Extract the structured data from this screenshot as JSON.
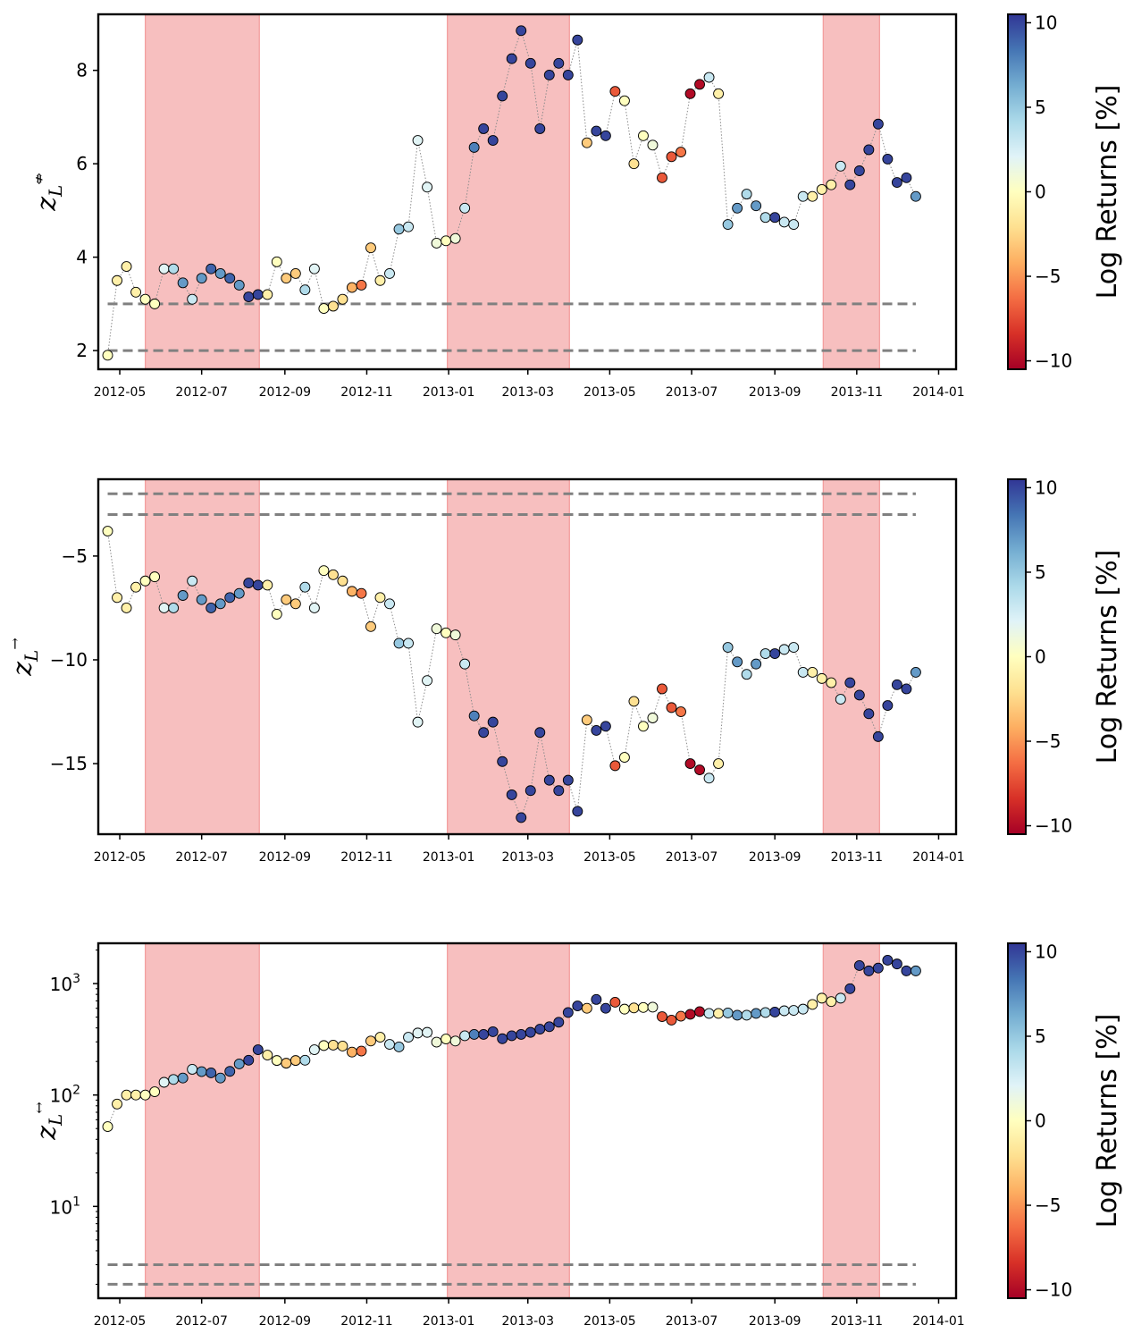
{
  "colorbar_label": "Log Returns [%]",
  "colorbar_ticks": [
    10,
    5,
    0,
    -5,
    -10
  ],
  "colorbar_tick_labels": [
    "10",
    "5",
    "0",
    "−5",
    "−10"
  ],
  "colormap": [
    "#a50026",
    "#d73027",
    "#f46d43",
    "#fdae61",
    "#fee090",
    "#ffffbf",
    "#e0f3f8",
    "#abd9e9",
    "#74add1",
    "#4575b4",
    "#313695"
  ],
  "shade_color": "#f08080",
  "dates": [
    "2012-04-22",
    "2012-04-29",
    "2012-05-06",
    "2012-05-13",
    "2012-05-20",
    "2012-05-27",
    "2012-06-03",
    "2012-06-10",
    "2012-06-17",
    "2012-06-24",
    "2012-07-01",
    "2012-07-08",
    "2012-07-15",
    "2012-07-22",
    "2012-07-29",
    "2012-08-05",
    "2012-08-12",
    "2012-08-19",
    "2012-08-26",
    "2012-09-02",
    "2012-09-09",
    "2012-09-16",
    "2012-09-23",
    "2012-09-30",
    "2012-10-07",
    "2012-10-14",
    "2012-10-21",
    "2012-10-28",
    "2012-11-04",
    "2012-11-11",
    "2012-11-18",
    "2012-11-25",
    "2012-12-02",
    "2012-12-09",
    "2012-12-16",
    "2012-12-23",
    "2012-12-30",
    "2013-01-06",
    "2013-01-13",
    "2013-01-20",
    "2013-01-27",
    "2013-02-03",
    "2013-02-10",
    "2013-02-17",
    "2013-02-24",
    "2013-03-03",
    "2013-03-10",
    "2013-03-17",
    "2013-03-24",
    "2013-03-31",
    "2013-04-07",
    "2013-04-14",
    "2013-04-21",
    "2013-04-28",
    "2013-05-05",
    "2013-05-12",
    "2013-05-19",
    "2013-05-26",
    "2013-06-02",
    "2013-06-09",
    "2013-06-16",
    "2013-06-23",
    "2013-06-30",
    "2013-07-07",
    "2013-07-14",
    "2013-07-21",
    "2013-07-28",
    "2013-08-04",
    "2013-08-11",
    "2013-08-18",
    "2013-08-25",
    "2013-09-01",
    "2013-09-08",
    "2013-09-15",
    "2013-09-22",
    "2013-09-29",
    "2013-10-06",
    "2013-10-13",
    "2013-10-20",
    "2013-10-27",
    "2013-11-03",
    "2013-11-10",
    "2013-11-17",
    "2013-11-24",
    "2013-12-01",
    "2013-12-08",
    "2013-12-15"
  ],
  "returns": [
    0,
    -1,
    -1,
    -1,
    0,
    0,
    2,
    4,
    7,
    3,
    7,
    9,
    7,
    9,
    7,
    10,
    10,
    -1,
    0,
    -3,
    -3,
    4,
    2,
    0,
    -2,
    -2,
    -4,
    -6,
    -3,
    -1,
    3,
    5,
    3,
    2,
    2,
    1,
    0,
    1,
    3,
    8,
    10,
    10,
    10,
    10,
    10,
    10,
    10,
    10,
    10,
    10,
    10,
    -3,
    10,
    10,
    -7,
    0,
    -2,
    0,
    1,
    -7,
    -7,
    -6,
    -10,
    -10,
    3,
    -1,
    5,
    7,
    4,
    7,
    4,
    10,
    3,
    3,
    3,
    -1,
    -1,
    -1,
    3,
    10,
    10,
    10,
    10,
    10,
    10,
    10,
    7
  ],
  "shaded_ranges": [
    [
      "2012-05-20",
      "2012-08-13"
    ],
    [
      "2012-12-31",
      "2013-04-01"
    ],
    [
      "2013-10-07",
      "2013-11-18"
    ]
  ],
  "x_tick_labels": [
    "2012-05",
    "2012-07",
    "2012-09",
    "2012-11",
    "2013-01",
    "2013-03",
    "2013-05",
    "2013-07",
    "2013-09",
    "2013-11",
    "2014-01"
  ],
  "x_tick_dates": [
    "2012-05-01",
    "2012-07-01",
    "2012-09-01",
    "2012-11-01",
    "2013-01-01",
    "2013-03-01",
    "2013-05-01",
    "2013-07-01",
    "2013-09-01",
    "2013-11-01",
    "2014-01-01"
  ],
  "panels": [
    {
      "ylabel_main": "z",
      "ylabel_sub": "L",
      "ylabel_sup": "⇎",
      "scale": "linear",
      "ylim": [
        1.6,
        9.2
      ],
      "yticks": [
        2,
        4,
        6,
        8
      ],
      "ytick_labels": [
        "2",
        "4",
        "6",
        "8"
      ],
      "threshold_lines": [
        2,
        3
      ],
      "values": [
        1.9,
        3.5,
        3.8,
        3.25,
        3.1,
        3.0,
        3.75,
        3.75,
        3.45,
        3.1,
        3.55,
        3.75,
        3.65,
        3.55,
        3.4,
        3.15,
        3.2,
        3.2,
        3.9,
        3.55,
        3.65,
        3.3,
        3.75,
        2.9,
        2.95,
        3.1,
        3.35,
        3.4,
        4.2,
        3.5,
        3.65,
        4.6,
        4.65,
        6.5,
        5.5,
        4.3,
        4.35,
        4.4,
        5.05,
        6.35,
        6.75,
        6.5,
        7.45,
        8.25,
        8.85,
        8.15,
        6.75,
        7.9,
        8.15,
        7.9,
        8.65,
        6.45,
        6.7,
        6.6,
        7.55,
        7.35,
        6.0,
        6.6,
        6.4,
        5.7,
        6.15,
        6.25,
        7.5,
        7.7,
        7.85,
        7.5,
        4.7,
        5.05,
        5.35,
        5.1,
        4.85,
        4.85,
        4.75,
        4.7,
        5.3,
        5.3,
        5.45,
        5.55,
        5.95,
        5.55,
        5.85,
        6.3,
        6.85,
        6.1,
        5.6,
        5.7,
        5.3
      ]
    },
    {
      "ylabel_main": "z",
      "ylabel_sub": "L",
      "ylabel_sup": "→",
      "scale": "linear",
      "ylim": [
        -18.4,
        -1.3
      ],
      "yticks": [
        -5,
        -10,
        -15
      ],
      "ytick_labels": [
        "−5",
        "−10",
        "−15"
      ],
      "threshold_lines": [
        -2,
        -3
      ],
      "values": [
        -3.8,
        -7.0,
        -7.5,
        -6.5,
        -6.2,
        -6.0,
        -7.5,
        -7.5,
        -6.9,
        -6.2,
        -7.1,
        -7.5,
        -7.3,
        -7.0,
        -6.8,
        -6.3,
        -6.4,
        -6.4,
        -7.8,
        -7.1,
        -7.3,
        -6.5,
        -7.5,
        -5.7,
        -5.9,
        -6.2,
        -6.7,
        -6.8,
        -8.4,
        -7.0,
        -7.3,
        -9.2,
        -9.2,
        -13.0,
        -11.0,
        -8.5,
        -8.7,
        -8.8,
        -10.2,
        -12.7,
        -13.5,
        -13.0,
        -14.9,
        -16.5,
        -17.6,
        -16.3,
        -13.5,
        -15.8,
        -16.3,
        -15.8,
        -17.3,
        -12.9,
        -13.4,
        -13.2,
        -15.1,
        -14.7,
        -12.0,
        -13.2,
        -12.8,
        -11.4,
        -12.3,
        -12.5,
        -15.0,
        -15.3,
        -15.7,
        -15.0,
        -9.4,
        -10.1,
        -10.7,
        -10.2,
        -9.7,
        -9.7,
        -9.5,
        -9.4,
        -10.6,
        -10.6,
        -10.9,
        -11.1,
        -11.9,
        -11.1,
        -11.7,
        -12.6,
        -13.7,
        -12.2,
        -11.2,
        -11.4,
        -10.6
      ]
    },
    {
      "ylabel_main": "z",
      "ylabel_sub": "L",
      "ylabel_sup": "↔",
      "scale": "log",
      "ylim": [
        1.5,
        2300
      ],
      "yticks": [
        10,
        100,
        1000
      ],
      "ytick_labels": [
        {
          "base": "10",
          "exp": "1"
        },
        {
          "base": "10",
          "exp": "2"
        },
        {
          "base": "10",
          "exp": "3"
        }
      ],
      "threshold_lines": [
        2,
        3
      ],
      "values": [
        52,
        83,
        100,
        100,
        100,
        107,
        130,
        138,
        142,
        170,
        162,
        158,
        142,
        163,
        190,
        205,
        255,
        228,
        204,
        193,
        204,
        205,
        255,
        278,
        280,
        275,
        243,
        248,
        305,
        330,
        285,
        270,
        330,
        360,
        365,
        298,
        318,
        305,
        340,
        350,
        350,
        370,
        320,
        340,
        350,
        365,
        390,
        410,
        450,
        550,
        630,
        600,
        720,
        600,
        680,
        590,
        605,
        610,
        615,
        505,
        470,
        510,
        530,
        560,
        540,
        540,
        545,
        520,
        520,
        540,
        550,
        555,
        570,
        575,
        590,
        650,
        740,
        690,
        740,
        900,
        1450,
        1300,
        1380,
        1620,
        1500,
        1300,
        1300
      ]
    }
  ]
}
